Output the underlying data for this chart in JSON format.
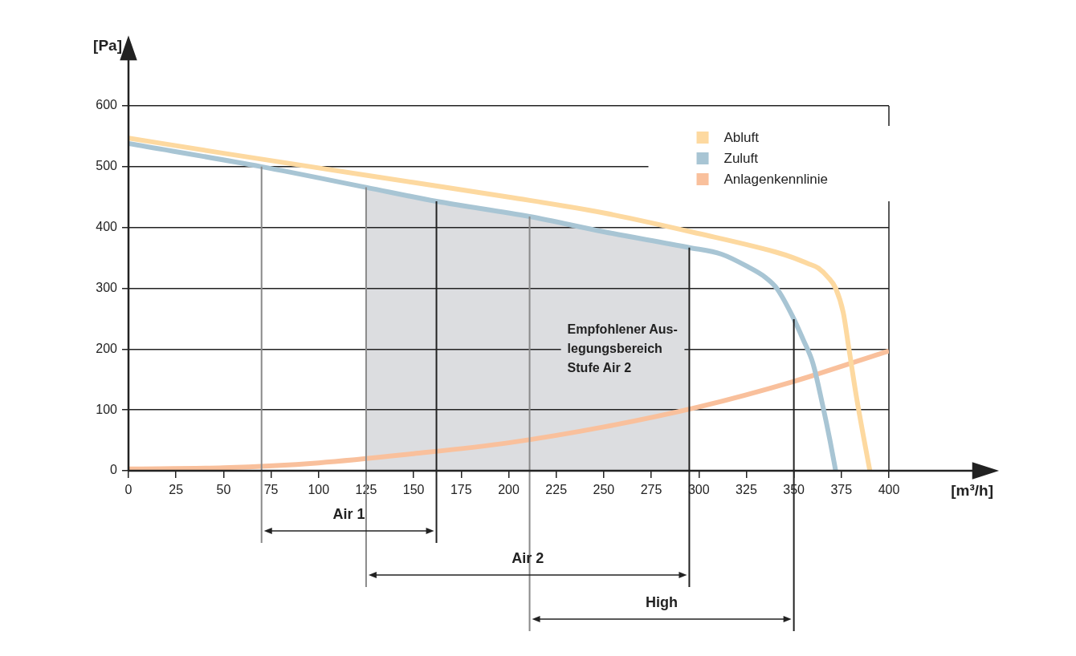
{
  "chart_data": {
    "type": "line",
    "xlabel": "[m³/h]",
    "ylabel": "[Pa]",
    "xlim": [
      0,
      400
    ],
    "xticks": [
      0,
      25,
      50,
      75,
      100,
      125,
      150,
      175,
      200,
      225,
      250,
      275,
      300,
      325,
      350,
      375,
      400
    ],
    "ylim": [
      0,
      600
    ],
    "yticks": [
      0,
      100,
      200,
      300,
      400,
      500,
      600
    ],
    "grid": "y",
    "legend": "top right",
    "marker": "none",
    "line_style": "solid",
    "series": [
      {
        "name": "Abluft",
        "color": "#fdd9a0",
        "x": [
          0,
          50,
          100,
          150,
          200,
          250,
          300,
          340,
          350,
          358,
          363,
          368,
          372,
          376,
          379,
          383,
          387,
          390
        ],
        "values": [
          547,
          522,
          498,
          474,
          450,
          424,
          390,
          360,
          350,
          340,
          333,
          318,
          300,
          260,
          200,
          120,
          50,
          0
        ]
      },
      {
        "name": "Zuluft",
        "color": "#a8c5d4",
        "x": [
          0,
          70,
          125,
          162,
          211,
          250,
          295,
          312,
          326,
          335,
          341,
          349,
          355,
          360,
          365,
          369,
          372
        ],
        "values": [
          538,
          500,
          466,
          443,
          418,
          393,
          367,
          356,
          335,
          318,
          300,
          256,
          215,
          177,
          110,
          50,
          0
        ]
      },
      {
        "name": "Anlagenkennlinie",
        "color": "#f9c09c",
        "x": [
          0,
          50,
          100,
          150,
          200,
          250,
          300,
          350,
          400
        ],
        "values": [
          3,
          5,
          13,
          28,
          46,
          72,
          105,
          147,
          197
        ]
      }
    ],
    "bands": [
      {
        "axis": "x",
        "from": 125,
        "to": 295,
        "label": "Empfohlener Aus-\nlegungsbereich\nStufe Air 2",
        "color": "#dcdde0"
      }
    ],
    "ref_lines": [
      {
        "axis": "x",
        "value": 70,
        "color": "#8a8a8a"
      },
      {
        "axis": "x",
        "value": 125,
        "color": "#8a8a8a"
      },
      {
        "axis": "x",
        "value": 211,
        "color": "#8a8a8a"
      },
      {
        "axis": "x",
        "value": 162,
        "color": "#222222"
      },
      {
        "axis": "x",
        "value": 295,
        "color": "#222222"
      },
      {
        "axis": "x",
        "value": 350,
        "color": "#222222"
      }
    ],
    "annotations": [
      "Air 1",
      "Air 2",
      "High"
    ]
  }
}
